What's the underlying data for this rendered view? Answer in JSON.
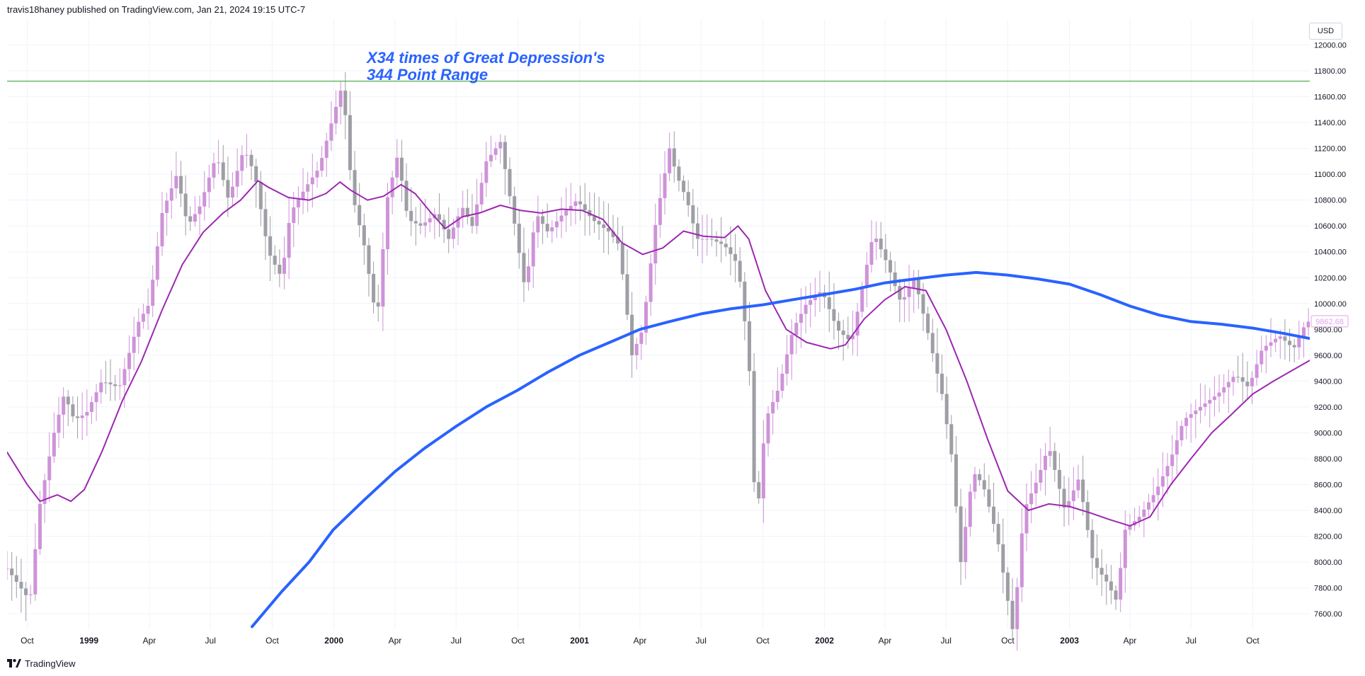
{
  "header": {
    "published": "travis18haney published on TradingView.com, Jan 21, 2024 19:15 UTC-7"
  },
  "footer": {
    "brand": "TradingView"
  },
  "axis": {
    "currency": "USD"
  },
  "colors": {
    "bull": "#ce93d8",
    "bear": "#9e9ea5",
    "ma_short": "#9c27b0",
    "ma_long": "#2962ff",
    "hline": "#4caf50",
    "annotation": "#2962ff",
    "last_price": "#e1a3e8"
  },
  "chart_data": {
    "type": "candlestick",
    "title": "",
    "annotation": [
      "X34 times of Great Depression's",
      "344 Point Range"
    ],
    "hline": 11720,
    "last_price_label": "9862.68",
    "ylim": [
      7480,
      12200
    ],
    "y_ticks": [
      7600,
      7800,
      8000,
      8200,
      8400,
      8600,
      8800,
      9000,
      9200,
      9400,
      9600,
      9800,
      10000,
      10200,
      10400,
      10600,
      10800,
      11000,
      11200,
      11400,
      11600,
      11800,
      12000
    ],
    "y_tick_labels": [
      "7600.00",
      "7800.00",
      "8000.00",
      "8200.00",
      "8400.00",
      "8600.00",
      "8800.00",
      "9000.00",
      "9200.00",
      "9400.00",
      "9600.00",
      "9800.00",
      "10000.00",
      "10200.00",
      "10400.00",
      "10600.00",
      "10800.00",
      "11000.00",
      "11200.00",
      "11400.00",
      "11600.00",
      "11800.00",
      "12000.00"
    ],
    "x_ticks": [
      {
        "label": "Oct",
        "date": "1998-10-01"
      },
      {
        "label": "1999",
        "date": "1999-01-01"
      },
      {
        "label": "Apr",
        "date": "1999-04-01"
      },
      {
        "label": "Jul",
        "date": "1999-07-01"
      },
      {
        "label": "Oct",
        "date": "1999-10-01"
      },
      {
        "label": "2000",
        "date": "2000-01-01"
      },
      {
        "label": "Apr",
        "date": "2000-04-01"
      },
      {
        "label": "Jul",
        "date": "2000-07-01"
      },
      {
        "label": "Oct",
        "date": "2000-10-01"
      },
      {
        "label": "2001",
        "date": "2001-01-01"
      },
      {
        "label": "Apr",
        "date": "2001-04-01"
      },
      {
        "label": "Jul",
        "date": "2001-07-01"
      },
      {
        "label": "Oct",
        "date": "2001-10-01"
      },
      {
        "label": "2002",
        "date": "2002-01-01"
      },
      {
        "label": "Apr",
        "date": "2002-04-01"
      },
      {
        "label": "Jul",
        "date": "2002-07-01"
      },
      {
        "label": "Oct",
        "date": "2002-10-01"
      },
      {
        "label": "2003",
        "date": "2003-01-01"
      },
      {
        "label": "Apr",
        "date": "2003-04-01"
      },
      {
        "label": "Jul",
        "date": "2003-07-01"
      },
      {
        "label": "Oct",
        "date": "2003-10-01"
      }
    ],
    "xlim": [
      "1998-09-01",
      "2003-12-25"
    ],
    "candle_spacing_days": 7,
    "close_anchors": [
      [
        "1998-09-01",
        7950
      ],
      [
        "1998-10-05",
        7700
      ],
      [
        "1998-10-20",
        8450
      ],
      [
        "1998-11-10",
        9000
      ],
      [
        "1998-11-25",
        9300
      ],
      [
        "1998-12-10",
        9100
      ],
      [
        "1998-12-28",
        9150
      ],
      [
        "1999-01-20",
        9400
      ],
      [
        "1999-02-15",
        9350
      ],
      [
        "1999-03-15",
        9850
      ],
      [
        "1999-04-01",
        10000
      ],
      [
        "1999-04-20",
        10700
      ],
      [
        "1999-05-12",
        11000
      ],
      [
        "1999-05-28",
        10600
      ],
      [
        "1999-06-15",
        10750
      ],
      [
        "1999-07-10",
        11150
      ],
      [
        "1999-07-28",
        10800
      ],
      [
        "1999-08-20",
        11200
      ],
      [
        "1999-09-05",
        11000
      ],
      [
        "1999-09-25",
        10400
      ],
      [
        "1999-10-15",
        10200
      ],
      [
        "1999-10-28",
        10700
      ],
      [
        "1999-11-20",
        10900
      ],
      [
        "1999-12-10",
        11050
      ],
      [
        "1999-12-31",
        11450
      ],
      [
        "2000-01-14",
        11700
      ],
      [
        "2000-01-28",
        10850
      ],
      [
        "2000-02-15",
        10450
      ],
      [
        "2000-03-05",
        9850
      ],
      [
        "2000-03-20",
        10800
      ],
      [
        "2000-04-05",
        11150
      ],
      [
        "2000-04-20",
        10650
      ],
      [
        "2000-05-10",
        10600
      ],
      [
        "2000-06-01",
        10700
      ],
      [
        "2000-06-20",
        10500
      ],
      [
        "2000-07-10",
        10750
      ],
      [
        "2000-07-25",
        10600
      ],
      [
        "2000-08-15",
        11100
      ],
      [
        "2000-09-05",
        11250
      ],
      [
        "2000-09-25",
        10650
      ],
      [
        "2000-10-12",
        10100
      ],
      [
        "2000-10-28",
        10700
      ],
      [
        "2000-11-15",
        10550
      ],
      [
        "2000-12-08",
        10700
      ],
      [
        "2000-12-28",
        10800
      ],
      [
        "2001-01-20",
        10650
      ],
      [
        "2001-02-15",
        10550
      ],
      [
        "2001-03-01",
        10450
      ],
      [
        "2001-03-20",
        9600
      ],
      [
        "2001-04-05",
        9800
      ],
      [
        "2001-04-25",
        10650
      ],
      [
        "2001-05-15",
        11200
      ],
      [
        "2001-05-25",
        11000
      ],
      [
        "2001-06-10",
        10800
      ],
      [
        "2001-06-25",
        10500
      ],
      [
        "2001-07-15",
        10500
      ],
      [
        "2001-08-05",
        10450
      ],
      [
        "2001-08-25",
        10300
      ],
      [
        "2001-09-10",
        9600
      ],
      [
        "2001-09-21",
        8250
      ],
      [
        "2001-10-05",
        9100
      ],
      [
        "2001-10-25",
        9350
      ],
      [
        "2001-11-15",
        9800
      ],
      [
        "2001-12-05",
        10000
      ],
      [
        "2001-12-28",
        10100
      ],
      [
        "2002-01-20",
        9800
      ],
      [
        "2002-02-10",
        9700
      ],
      [
        "2002-03-01",
        10200
      ],
      [
        "2002-03-15",
        10550
      ],
      [
        "2002-04-05",
        10300
      ],
      [
        "2002-04-25",
        10000
      ],
      [
        "2002-05-15",
        10200
      ],
      [
        "2002-06-05",
        9750
      ],
      [
        "2002-06-25",
        9300
      ],
      [
        "2002-07-10",
        8800
      ],
      [
        "2002-07-23",
        8000
      ],
      [
        "2002-08-10",
        8700
      ],
      [
        "2002-08-25",
        8600
      ],
      [
        "2002-09-15",
        8200
      ],
      [
        "2002-10-09",
        7450
      ],
      [
        "2002-10-25",
        8400
      ],
      [
        "2002-11-15",
        8650
      ],
      [
        "2002-12-01",
        8900
      ],
      [
        "2002-12-25",
        8400
      ],
      [
        "2003-01-15",
        8650
      ],
      [
        "2003-02-05",
        8000
      ],
      [
        "2003-02-25",
        7850
      ],
      [
        "2003-03-12",
        7700
      ],
      [
        "2003-03-25",
        8250
      ],
      [
        "2003-04-15",
        8350
      ],
      [
        "2003-05-10",
        8550
      ],
      [
        "2003-06-01",
        8800
      ],
      [
        "2003-06-20",
        9100
      ],
      [
        "2003-07-15",
        9200
      ],
      [
        "2003-08-10",
        9300
      ],
      [
        "2003-09-05",
        9450
      ],
      [
        "2003-09-25",
        9350
      ],
      [
        "2003-10-15",
        9650
      ],
      [
        "2003-11-10",
        9750
      ],
      [
        "2003-12-01",
        9650
      ],
      [
        "2003-12-20",
        9860
      ]
    ],
    "series": [
      {
        "name": "",
        "type": "line",
        "color": "#9c27b0",
        "points": [
          [
            "1998-09-01",
            8850
          ],
          [
            "1998-10-01",
            8600
          ],
          [
            "1998-10-20",
            8470
          ],
          [
            "1998-11-15",
            8520
          ],
          [
            "1998-12-05",
            8470
          ],
          [
            "1998-12-25",
            8560
          ],
          [
            "1999-01-20",
            8850
          ],
          [
            "1999-02-20",
            9250
          ],
          [
            "1999-03-20",
            9550
          ],
          [
            "1999-04-20",
            9950
          ],
          [
            "1999-05-20",
            10300
          ],
          [
            "1999-06-20",
            10550
          ],
          [
            "1999-07-20",
            10700
          ],
          [
            "1999-08-15",
            10800
          ],
          [
            "1999-09-10",
            10950
          ],
          [
            "1999-09-25",
            10900
          ],
          [
            "1999-10-25",
            10820
          ],
          [
            "1999-11-25",
            10800
          ],
          [
            "1999-12-20",
            10850
          ],
          [
            "2000-01-10",
            10940
          ],
          [
            "2000-01-25",
            10880
          ],
          [
            "2000-02-20",
            10800
          ],
          [
            "2000-03-15",
            10830
          ],
          [
            "2000-04-10",
            10920
          ],
          [
            "2000-05-01",
            10850
          ],
          [
            "2000-05-25",
            10700
          ],
          [
            "2000-06-15",
            10580
          ],
          [
            "2000-07-10",
            10670
          ],
          [
            "2000-08-05",
            10700
          ],
          [
            "2000-09-05",
            10760
          ],
          [
            "2000-10-05",
            10720
          ],
          [
            "2000-11-05",
            10700
          ],
          [
            "2000-12-05",
            10730
          ],
          [
            "2001-01-05",
            10720
          ],
          [
            "2001-02-05",
            10650
          ],
          [
            "2001-03-05",
            10470
          ],
          [
            "2001-04-05",
            10380
          ],
          [
            "2001-05-05",
            10430
          ],
          [
            "2001-06-05",
            10560
          ],
          [
            "2001-07-05",
            10520
          ],
          [
            "2001-08-05",
            10510
          ],
          [
            "2001-08-25",
            10600
          ],
          [
            "2001-09-10",
            10500
          ],
          [
            "2001-10-05",
            10100
          ],
          [
            "2001-11-05",
            9800
          ],
          [
            "2001-12-05",
            9700
          ],
          [
            "2002-01-10",
            9650
          ],
          [
            "2002-02-01",
            9680
          ],
          [
            "2002-03-01",
            9880
          ],
          [
            "2002-04-01",
            10030
          ],
          [
            "2002-05-01",
            10130
          ],
          [
            "2002-06-01",
            10100
          ],
          [
            "2002-07-01",
            9800
          ],
          [
            "2002-08-01",
            9400
          ],
          [
            "2002-09-01",
            8950
          ],
          [
            "2002-10-01",
            8550
          ],
          [
            "2002-11-01",
            8400
          ],
          [
            "2002-12-01",
            8450
          ],
          [
            "2003-01-01",
            8430
          ],
          [
            "2003-02-01",
            8380
          ],
          [
            "2003-03-01",
            8330
          ],
          [
            "2003-04-01",
            8280
          ],
          [
            "2003-05-01",
            8350
          ],
          [
            "2003-06-01",
            8600
          ],
          [
            "2003-07-01",
            8800
          ],
          [
            "2003-08-01",
            9000
          ],
          [
            "2003-09-01",
            9150
          ],
          [
            "2003-10-01",
            9300
          ],
          [
            "2003-11-01",
            9400
          ],
          [
            "2003-12-25",
            9560
          ]
        ]
      },
      {
        "name": "",
        "type": "line",
        "color": "#2962ff",
        "points": [
          [
            "1999-09-01",
            7500
          ],
          [
            "1999-10-15",
            7770
          ],
          [
            "1999-11-25",
            8000
          ],
          [
            "1999-12-31",
            8250
          ],
          [
            "2000-02-15",
            8480
          ],
          [
            "2000-04-01",
            8700
          ],
          [
            "2000-05-15",
            8880
          ],
          [
            "2000-07-01",
            9050
          ],
          [
            "2000-08-15",
            9200
          ],
          [
            "2000-10-01",
            9330
          ],
          [
            "2000-11-15",
            9470
          ],
          [
            "2001-01-01",
            9600
          ],
          [
            "2001-02-15",
            9700
          ],
          [
            "2001-04-01",
            9800
          ],
          [
            "2001-05-15",
            9860
          ],
          [
            "2001-07-01",
            9920
          ],
          [
            "2001-08-15",
            9960
          ],
          [
            "2001-10-01",
            9990
          ],
          [
            "2001-11-15",
            10030
          ],
          [
            "2002-01-01",
            10070
          ],
          [
            "2002-02-15",
            10110
          ],
          [
            "2002-04-01",
            10160
          ],
          [
            "2002-05-15",
            10190
          ],
          [
            "2002-07-01",
            10220
          ],
          [
            "2002-08-15",
            10240
          ],
          [
            "2002-10-01",
            10220
          ],
          [
            "2002-11-15",
            10190
          ],
          [
            "2003-01-01",
            10150
          ],
          [
            "2003-02-15",
            10070
          ],
          [
            "2003-04-01",
            9980
          ],
          [
            "2003-05-15",
            9910
          ],
          [
            "2003-07-01",
            9860
          ],
          [
            "2003-08-15",
            9840
          ],
          [
            "2003-10-01",
            9810
          ],
          [
            "2003-11-15",
            9770
          ],
          [
            "2003-12-25",
            9730
          ]
        ]
      }
    ]
  }
}
